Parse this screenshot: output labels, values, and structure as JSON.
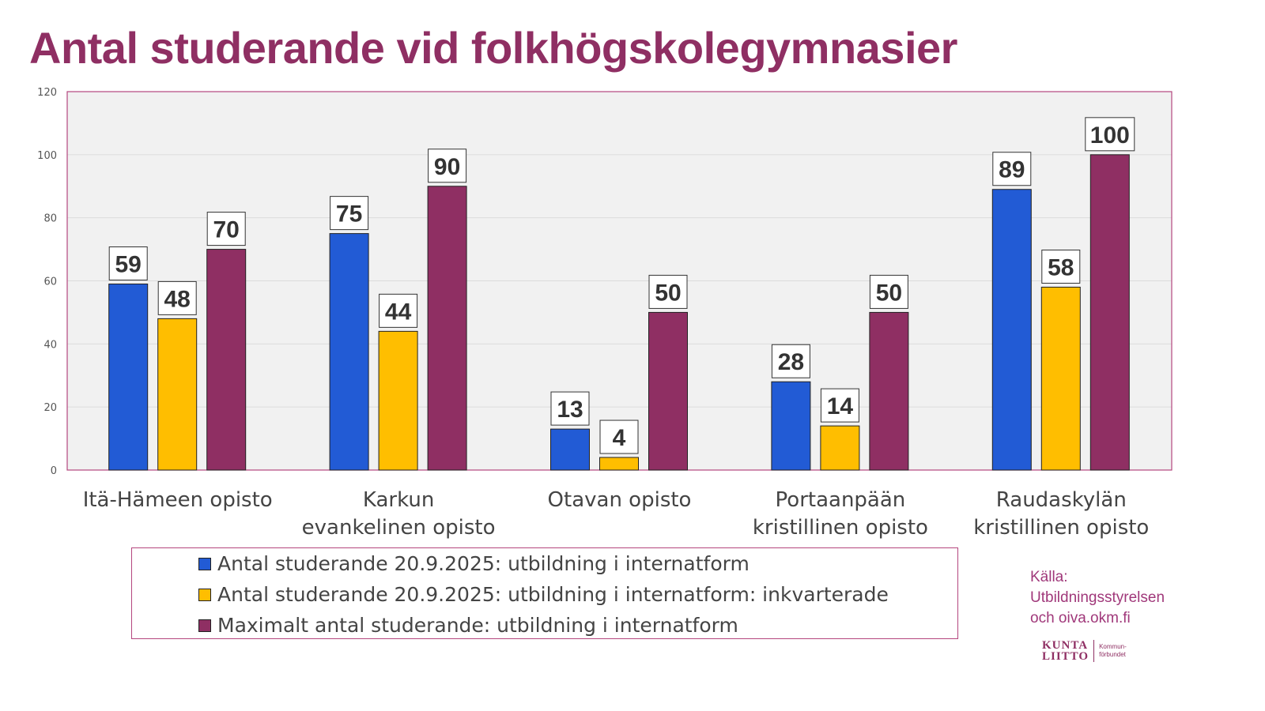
{
  "title": "Antal studerande vid folkhögskolegymnasier",
  "chart_data": {
    "type": "bar",
    "title": "Antal studerande vid folkhögskolegymnasier",
    "categories": [
      [
        "Itä-Hämeen opisto"
      ],
      [
        "Karkun",
        "evankelinen opisto"
      ],
      [
        "Otavan opisto"
      ],
      [
        "Portaanpään",
        "kristillinen opisto"
      ],
      [
        "Raudaskylän",
        "kristillinen opisto"
      ]
    ],
    "series": [
      {
        "name": "Antal studerande 20.9.2025: utbildning i internatform",
        "color": "#225bd5",
        "values": [
          59,
          75,
          13,
          28,
          89
        ]
      },
      {
        "name": "Antal studerande 20.9.2025: utbildning i internatform: inkvarterade",
        "color": "#ffbe00",
        "values": [
          48,
          44,
          4,
          14,
          58
        ]
      },
      {
        "name": "Maximalt antal studerande: utbildning i internatform",
        "color": "#8f2f63",
        "values": [
          70,
          90,
          50,
          50,
          100
        ]
      }
    ],
    "ylim": [
      0,
      120
    ],
    "yticks": [
      "0",
      "20",
      "40",
      "60",
      "80",
      "100",
      "120"
    ],
    "grid": true,
    "legend": "bottom"
  },
  "source": [
    "Källa:",
    "Utbildningsstyrelsen",
    "och oiva.okm.fi"
  ],
  "logo": {
    "line1": "KUNTA",
    "line2": "LIITTO",
    "sub1": "Kommun-",
    "sub2": "förbundet"
  }
}
